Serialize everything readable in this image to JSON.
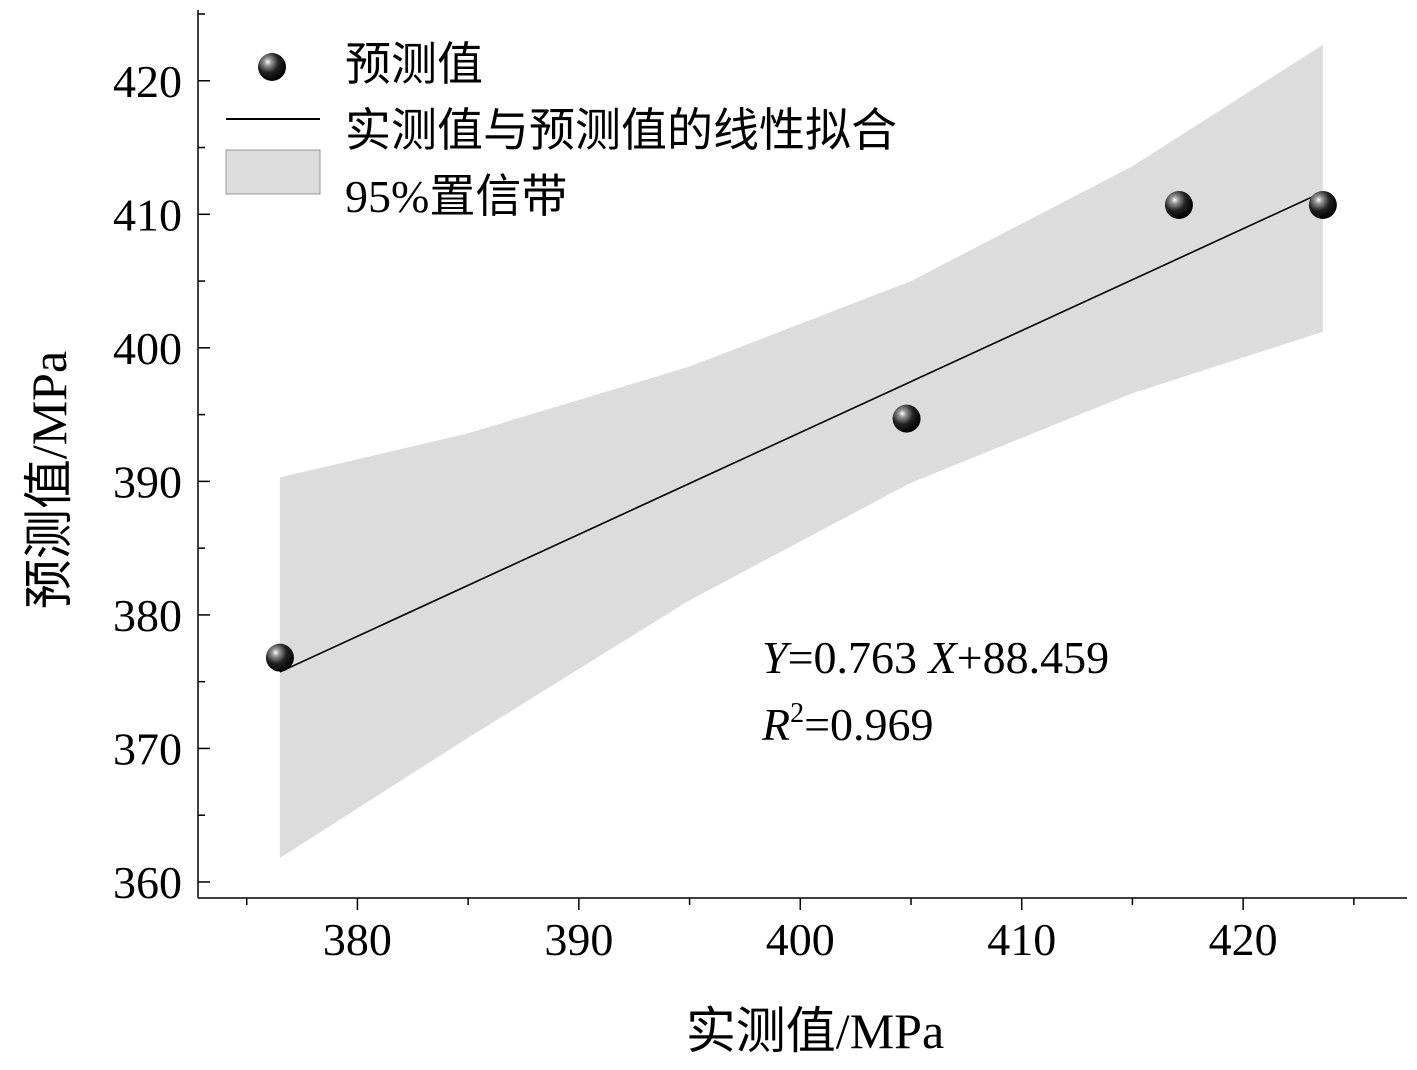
{
  "chart_data": {
    "type": "scatter",
    "xlabel": "实测值/MPa",
    "ylabel": "预测值/MPa",
    "xlim": [
      372.8,
      427.4
    ],
    "ylim": [
      358.8,
      425.3
    ],
    "xticks": [
      380,
      390,
      400,
      410,
      420
    ],
    "yticks": [
      360,
      370,
      380,
      390,
      400,
      410,
      420
    ],
    "xtick_labels": [
      "380",
      "390",
      "400",
      "410",
      "420"
    ],
    "ytick_labels": [
      "360",
      "370",
      "380",
      "390",
      "400",
      "410",
      "420"
    ],
    "grid": false,
    "legend_position": "top-left",
    "series": [
      {
        "name": "预测值",
        "type": "scatter",
        "x": [
          376.5,
          404.8,
          417.1,
          423.6
        ],
        "y": [
          376.8,
          394.7,
          410.7,
          410.7
        ]
      },
      {
        "name": "实测值与预测值的线性拟合",
        "type": "line",
        "slope": 0.763,
        "intercept": 88.459,
        "x_range": [
          376.5,
          423.6
        ]
      },
      {
        "name": "95%置信带",
        "type": "area",
        "x": [
          376.5,
          385,
          395,
          405,
          415,
          423.6
        ],
        "upper": [
          390.3,
          393.6,
          398.6,
          405.0,
          413.6,
          422.7
        ],
        "lower": [
          361.8,
          370.8,
          381.1,
          389.9,
          396.6,
          401.2
        ]
      }
    ],
    "annotation": {
      "y_var": "Y",
      "eq_mid": "=0.763 ",
      "x_var": "X",
      "eq_end": "+88.459",
      "r_var": "R",
      "r_sup": "2",
      "r_val": "=0.969"
    },
    "colors": {
      "band": "#dcdcdc",
      "line": "#000000",
      "marker": "#000000"
    }
  }
}
